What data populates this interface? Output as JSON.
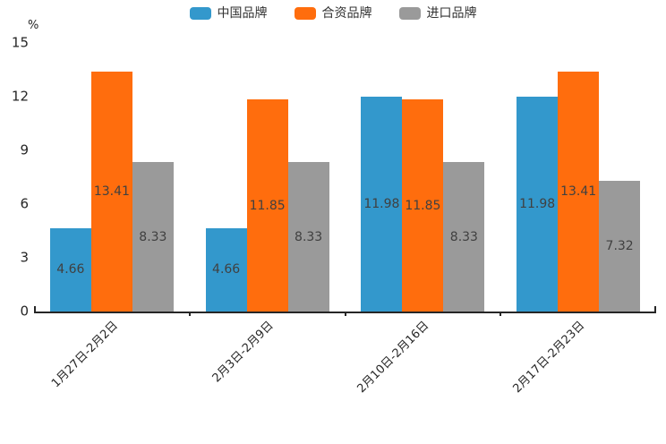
{
  "chart_data": {
    "type": "bar",
    "title": "",
    "ylabel": "%",
    "xlabel": "",
    "categories": [
      "1月27日-2月2日",
      "2月3日-2月9日",
      "2月10日-2月16日",
      "2月17日-2月23日"
    ],
    "series": [
      {
        "name": "中国品牌",
        "color": "#3398CC",
        "values": [
          4.66,
          4.66,
          11.98,
          11.98
        ]
      },
      {
        "name": "合资品牌",
        "color": "#FF6D0D",
        "values": [
          13.41,
          11.85,
          11.85,
          13.41
        ]
      },
      {
        "name": "进口品牌",
        "color": "#9A9A9A",
        "values": [
          8.33,
          8.33,
          8.33,
          7.32
        ]
      }
    ],
    "yticks": [
      0,
      3,
      6,
      9,
      12,
      15
    ],
    "ylim": [
      0,
      15
    ],
    "grid": false,
    "legend_position": "top",
    "bar_label_decimals": 2,
    "colors": {
      "axis": "#262626",
      "tick_label": "#262626",
      "bar_value_label": "#404040",
      "legend_label": "#333333",
      "background": "#ffffff"
    }
  }
}
